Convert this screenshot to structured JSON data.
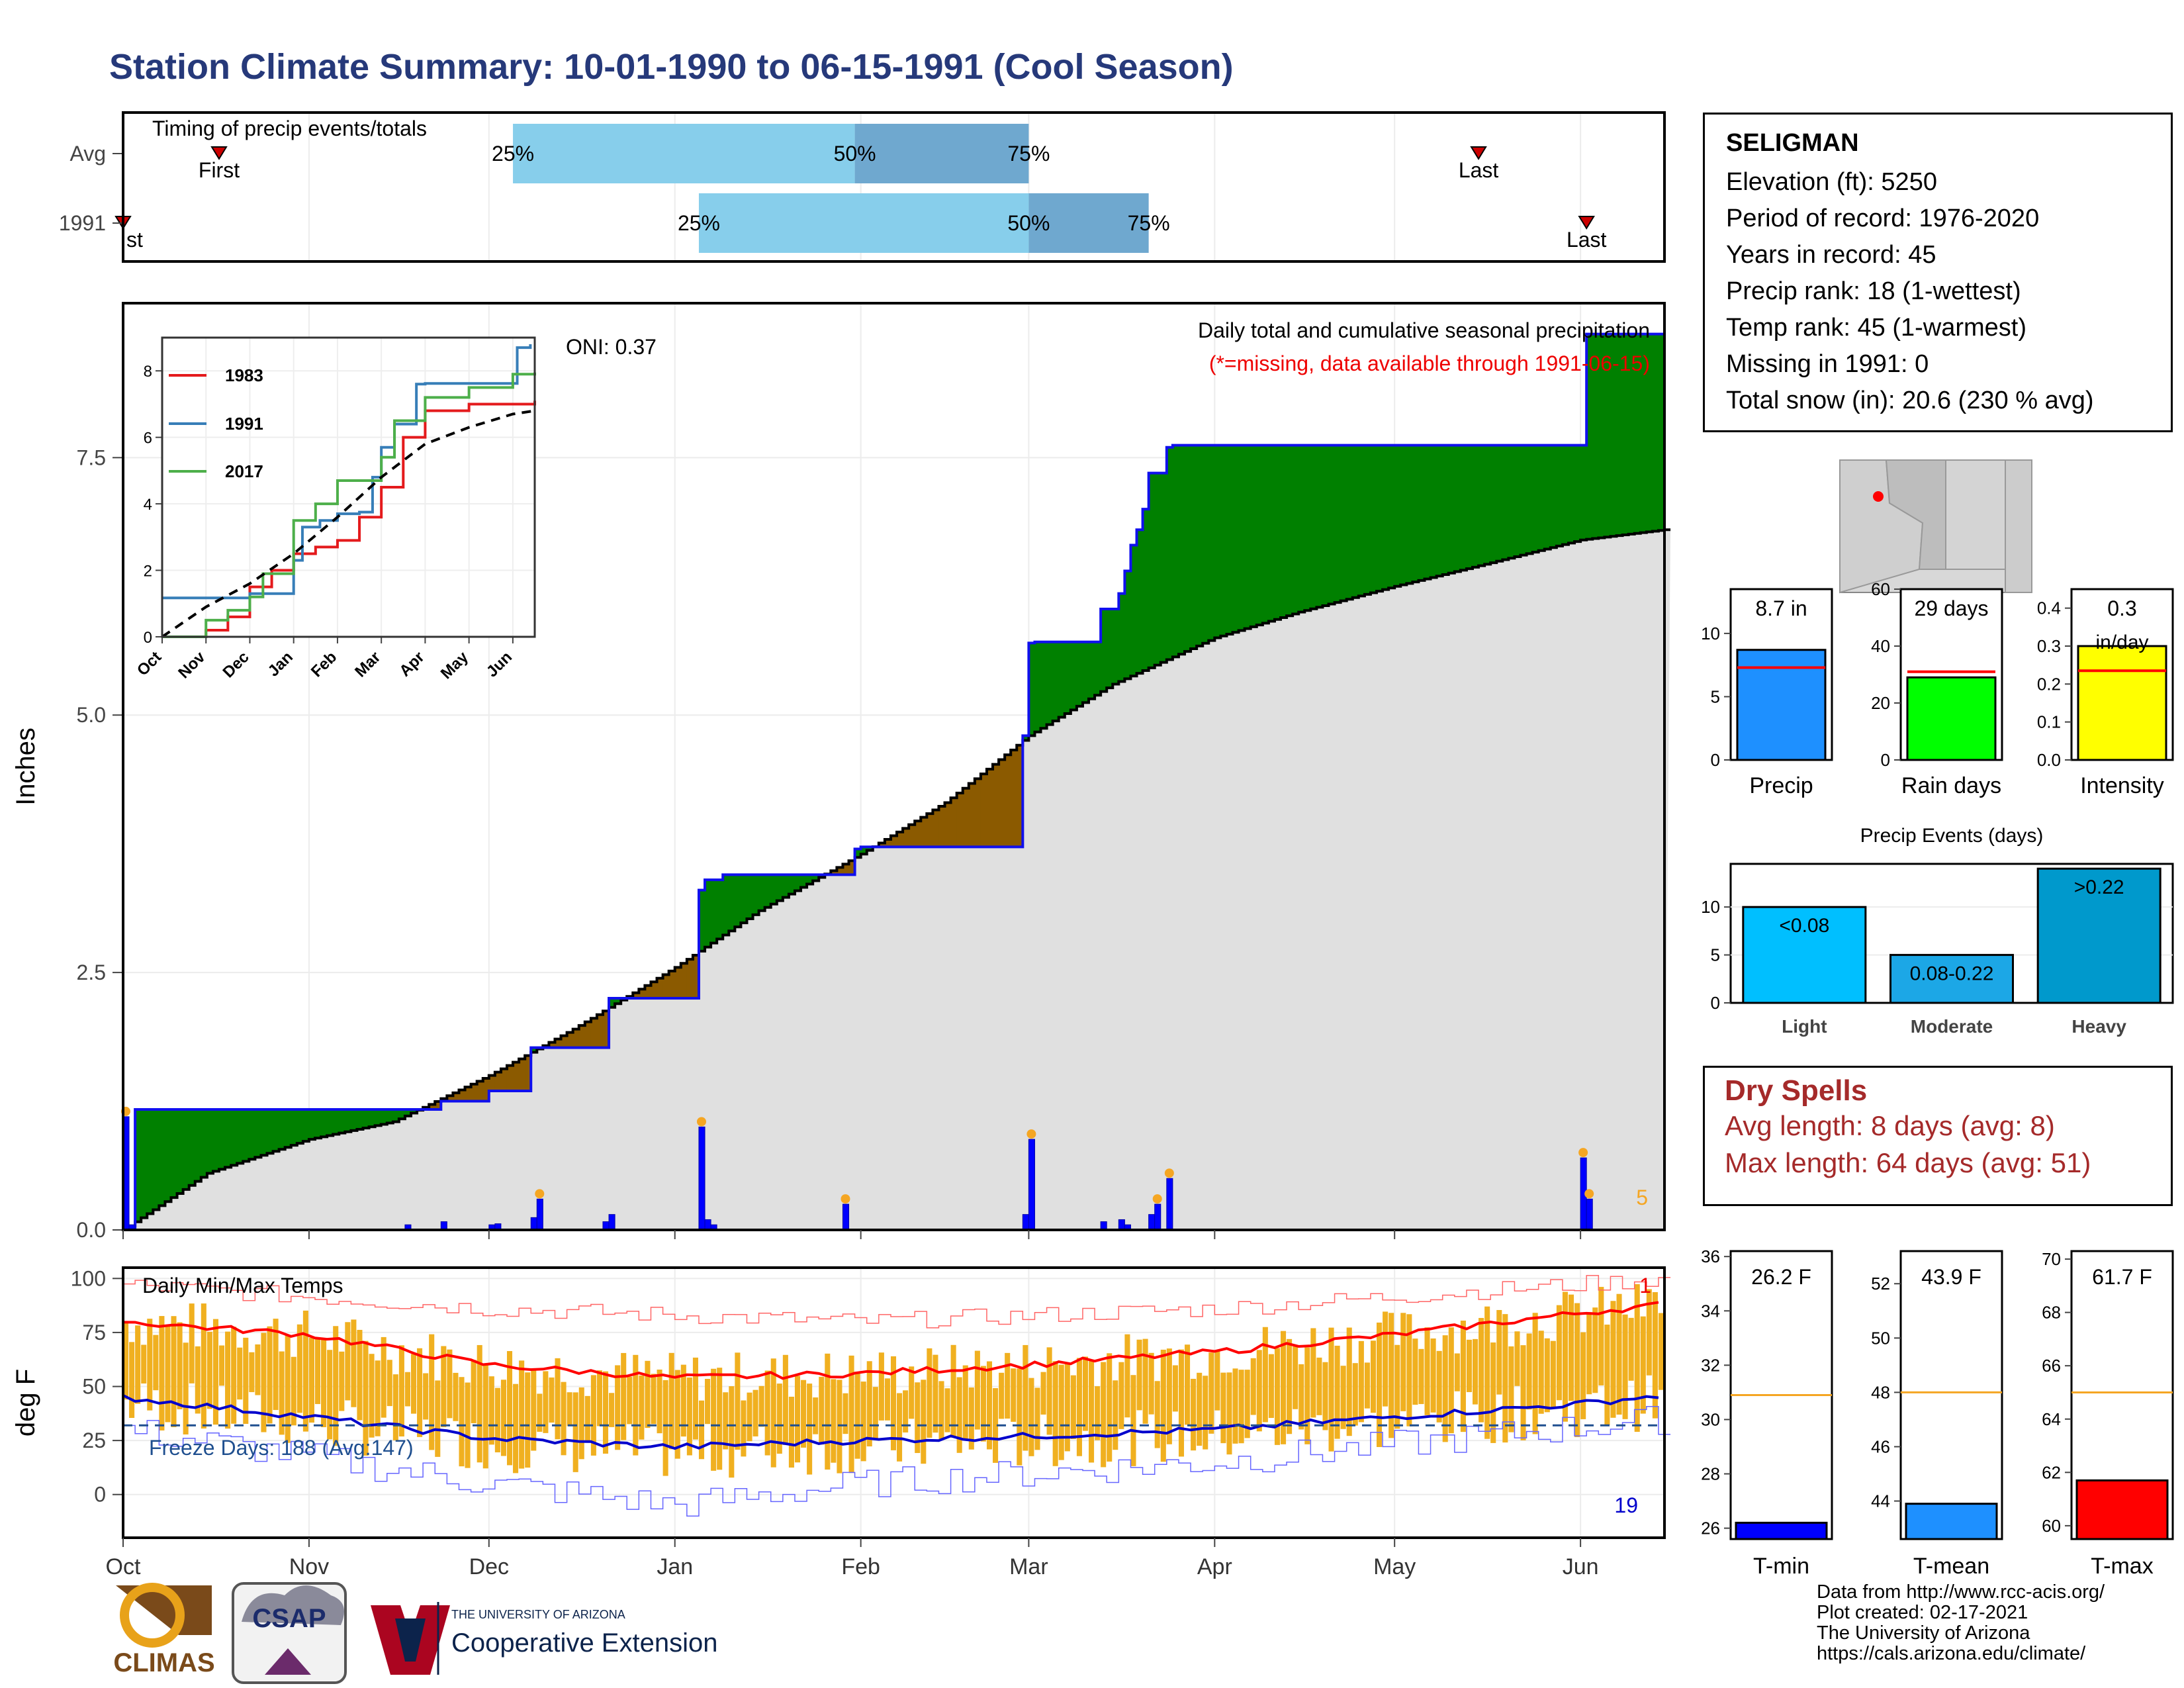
{
  "title": "Station Climate Summary: 10-01-1990 to 06-15-1991 (Cool Season)",
  "colors": {
    "title": "#26397a",
    "light_blue": "#87ceeb",
    "mid_blue": "#6fa8cf",
    "surplus": "#008000",
    "deficit": "#8b5a00",
    "cum_fill": "#e0e0e0",
    "daily_bar": "#0000ff",
    "temp_bar": "#f0b020",
    "normal_max": "#ff0000",
    "normal_min": "#0000cc",
    "precip_bar": "#1e90ff",
    "raindays_bar": "#00ff00",
    "intensity_bar": "#ffff00",
    "tmin_bar": "#0000ff",
    "tmean_bar": "#1e90ff",
    "tmax_bar": "#ff0000",
    "light_evt": "#00bfff",
    "moderate_evt": "#1ca7e6",
    "heavy_evt": "#0099cc",
    "avg_line": "#f5a623",
    "dry_text": "#a52a2a"
  },
  "timing": {
    "label": "Timing of precip events/totals",
    "rows": [
      {
        "name": "Avg",
        "first_date": "1990-10-17",
        "p25": "1990-12-05",
        "p50": "1991-01-31",
        "p75": "1991-03-01",
        "last_date": "1991-05-15",
        "labels": {
          "first": "First",
          "p25": "25%",
          "p50": "50%",
          "p75": "75%",
          "last": "Last"
        }
      },
      {
        "name": "1991",
        "first_date": "1990-10-01",
        "p25": "1991-01-05",
        "p50": "1991-03-01",
        "p75": "1991-03-21",
        "last_date": "1991-06-02",
        "labels": {
          "first": "First",
          "first_visible": "st",
          "p25": "25%",
          "p50": "50%",
          "p75": "75%",
          "last": "Last"
        }
      }
    ]
  },
  "precip_panel": {
    "ylabel": "Inches",
    "yticks": [
      "0.0",
      "2.5",
      "5.0",
      "7.5"
    ],
    "title": "Daily total and cumulative seasonal precipitation",
    "subtitle": "(*=missing, data available through 1991-06-15)",
    "oni": "ONI: 0.37",
    "corner_count": "5"
  },
  "inset": {
    "xticks": [
      "Oct",
      "Nov",
      "Dec",
      "Jan",
      "Feb",
      "Mar",
      "Apr",
      "May",
      "Jun"
    ],
    "yticks": [
      "0",
      "2",
      "4",
      "6",
      "8"
    ],
    "legend": [
      "1983",
      "1991",
      "2017"
    ]
  },
  "temp_panel": {
    "ylabel": "deg F",
    "yticks": [
      "0",
      "25",
      "50",
      "75",
      "100"
    ],
    "title": "Daily Min/Max Temps",
    "freeze_label": "Freeze Days: 188 (Avg:147)",
    "top_count": "1",
    "bottom_count": "19"
  },
  "months": [
    "Oct",
    "Nov",
    "Dec",
    "Jan",
    "Feb",
    "Mar",
    "Apr",
    "May",
    "Jun"
  ],
  "station": {
    "name": "SELIGMAN",
    "lines": [
      "Elevation (ft): 5250",
      "Period of record: 1976-2020",
      "Years in record: 45",
      "Precip rank: 18 (1-wettest)",
      "Temp rank: 45 (1-warmest)",
      "Missing in 1991: 0",
      "Total snow (in): 20.6 (230 % avg)"
    ]
  },
  "dry_spells": {
    "title": "Dry Spells",
    "avg": "Avg length: 8 days (avg: 8)",
    "max": "Max length: 64 days (avg: 51)"
  },
  "credits": [
    "Data from http://www.rcc-acis.org/",
    "Plot created: 02-17-2021",
    "The University of Arizona",
    "https://cals.arizona.edu/climate/"
  ],
  "logos": {
    "climas": "CLIMAS",
    "csap": "CSAP",
    "ua_line1": "THE UNIVERSITY OF ARIZONA",
    "ua_line2": "Cooperative Extension"
  },
  "chart_data": [
    {
      "type": "area",
      "id": "cumulative_precip",
      "ylim": [
        0,
        9.0
      ],
      "xlim": [
        "1990-10-01",
        "1991-06-15"
      ],
      "observed_cumulative": {
        "x": [
          "1990-10-01",
          "1990-10-03",
          "1990-11-17",
          "1990-11-23",
          "1990-12-01",
          "1990-12-08",
          "1990-12-21",
          "1991-01-05",
          "1991-01-06",
          "1991-01-09",
          "1991-01-31",
          "1991-02-01",
          "1991-02-28",
          "1991-03-01",
          "1991-03-02",
          "1991-03-13",
          "1991-03-16",
          "1991-03-17",
          "1991-03-18",
          "1991-03-19",
          "1991-03-20",
          "1991-03-21",
          "1991-03-24",
          "1991-03-25",
          "1991-06-01",
          "1991-06-02",
          "1991-06-15"
        ],
        "y": [
          0.0,
          1.17,
          1.17,
          1.25,
          1.35,
          1.77,
          2.25,
          3.3,
          3.4,
          3.45,
          3.7,
          3.72,
          4.8,
          5.7,
          5.71,
          6.03,
          6.18,
          6.4,
          6.65,
          6.8,
          7.0,
          7.35,
          7.6,
          7.62,
          7.62,
          8.7,
          8.7
        ]
      },
      "normal_cumulative": {
        "x": [
          "1990-10-01",
          "1990-10-15",
          "1990-11-01",
          "1990-11-15",
          "1990-12-01",
          "1990-12-15",
          "1991-01-01",
          "1991-01-15",
          "1991-02-01",
          "1991-02-15",
          "1991-03-01",
          "1991-03-15",
          "1991-04-01",
          "1991-04-15",
          "1991-05-01",
          "1991-05-15",
          "1991-06-01",
          "1991-06-15"
        ],
        "y": [
          0.0,
          0.55,
          0.88,
          1.05,
          1.5,
          1.95,
          2.55,
          3.1,
          3.65,
          4.15,
          4.8,
          5.3,
          5.75,
          6.0,
          6.25,
          6.45,
          6.7,
          6.8
        ]
      },
      "daily_precip": {
        "x": [
          "1990-10-01",
          "1990-10-02",
          "1990-11-17",
          "1990-11-23",
          "1990-12-01",
          "1990-12-02",
          "1990-12-08",
          "1990-12-09",
          "1990-12-20",
          "1990-12-21",
          "1991-01-05",
          "1991-01-06",
          "1991-01-07",
          "1991-01-29",
          "1991-02-28",
          "1991-03-01",
          "1991-03-13",
          "1991-03-16",
          "1991-03-17",
          "1991-03-21",
          "1991-03-22",
          "1991-03-24",
          "1991-06-01",
          "1991-06-02"
        ],
        "y": [
          1.1,
          0.05,
          0.05,
          0.08,
          0.05,
          0.06,
          0.12,
          0.3,
          0.08,
          0.15,
          1.0,
          0.1,
          0.05,
          0.25,
          0.15,
          0.88,
          0.08,
          0.1,
          0.05,
          0.15,
          0.25,
          0.5,
          0.7,
          0.3
        ]
      },
      "series_labels": [
        "1983",
        "1991",
        "2017"
      ]
    },
    {
      "type": "line",
      "id": "inset_cumulative",
      "xlim": [
        "Oct",
        "Jun"
      ],
      "ylim": [
        0,
        9.0
      ],
      "series": [
        {
          "name": "1983",
          "x": [
            0,
            1,
            1.5,
            2,
            2.5,
            3,
            3.5,
            4,
            4.5,
            5,
            5.5,
            6,
            7,
            8.5
          ],
          "y": [
            0,
            0.2,
            0.6,
            1.5,
            2.0,
            2.5,
            2.7,
            2.9,
            3.6,
            4.5,
            6.0,
            6.8,
            7.0,
            7.1
          ]
        },
        {
          "name": "1991",
          "x": [
            0,
            1,
            2,
            3,
            3.2,
            3.6,
            4,
            4.5,
            4.8,
            5,
            5.3,
            5.8,
            6,
            7,
            8,
            8.1,
            8.4
          ],
          "y": [
            1.17,
            1.17,
            1.3,
            2.3,
            3.3,
            3.5,
            3.7,
            3.75,
            4.8,
            5.7,
            6.4,
            7.6,
            7.62,
            7.62,
            7.62,
            8.7,
            8.8
          ]
        },
        {
          "name": "2017",
          "x": [
            0,
            1,
            1.5,
            2,
            2.3,
            3,
            3.5,
            4,
            4.3,
            5,
            5.3,
            6,
            7,
            8,
            8.5
          ],
          "y": [
            0,
            0.5,
            0.8,
            1.2,
            1.9,
            3.5,
            4.0,
            4.7,
            4.7,
            5.4,
            6.5,
            7.2,
            7.5,
            7.9,
            7.95
          ]
        },
        {
          "name": "normal",
          "x": [
            0,
            1,
            2,
            3,
            4,
            5,
            6,
            7,
            8,
            8.5
          ],
          "y": [
            0,
            0.9,
            1.6,
            2.5,
            3.6,
            4.8,
            5.8,
            6.3,
            6.7,
            6.8
          ]
        }
      ]
    },
    {
      "type": "bar",
      "id": "daily_temps",
      "ylim": [
        -20,
        105
      ],
      "xlim": [
        "1990-10-01",
        "1991-06-15"
      ],
      "observed_max_range": [
        60,
        95
      ],
      "observed_min_range": [
        -15,
        45
      ],
      "normal_max": {
        "x": [
          "1990-10-01",
          "1990-11-01",
          "1990-12-01",
          "1991-01-01",
          "1991-02-01",
          "1991-03-01",
          "1991-04-01",
          "1991-05-01",
          "1991-06-01",
          "1991-06-15"
        ],
        "y": [
          80,
          74,
          60,
          54,
          56,
          60,
          66,
          74,
          84,
          88
        ]
      },
      "normal_min": {
        "x": [
          "1990-10-01",
          "1990-11-01",
          "1990-12-01",
          "1991-01-01",
          "1991-02-01",
          "1991-03-01",
          "1991-04-01",
          "1991-05-01",
          "1991-06-01",
          "1991-06-15"
        ],
        "y": [
          45,
          36,
          26,
          22,
          25,
          27,
          30,
          36,
          42,
          46
        ]
      },
      "record_high": {
        "x": [
          "1990-10-01",
          "1990-12-01",
          "1991-02-01",
          "1991-04-01",
          "1991-06-15"
        ],
        "y": [
          97,
          86,
          80,
          86,
          100
        ]
      },
      "record_low": {
        "x": [
          "1990-10-01",
          "1990-12-01",
          "1991-01-01",
          "1991-02-01",
          "1991-04-01",
          "1991-06-15"
        ],
        "y": [
          30,
          5,
          -5,
          5,
          15,
          35
        ]
      },
      "freeze_threshold": 32
    },
    {
      "type": "bar",
      "id": "precip_summary",
      "categories": [
        "Precip",
        "Rain days",
        "Intensity"
      ],
      "panels": [
        {
          "category": "Precip",
          "value": 8.7,
          "label": "8.7 in",
          "avg": 7.3,
          "ylim": [
            0,
            13.5
          ],
          "yticks": [
            "0",
            "5",
            "10"
          ]
        },
        {
          "category": "Rain days",
          "value": 29,
          "label": "29 days",
          "avg": 31,
          "ylim": [
            0,
            60
          ],
          "yticks": [
            "0",
            "20",
            "40",
            "60"
          ]
        },
        {
          "category": "Intensity",
          "value": 0.3,
          "label": "0.3",
          "label2": "in/day",
          "avg": 0.235,
          "ylim": [
            0,
            0.45
          ],
          "yticks": [
            "0.0",
            "0.1",
            "0.2",
            "0.3",
            "0.4"
          ]
        }
      ]
    },
    {
      "type": "bar",
      "id": "precip_events",
      "title": "Precip Events (days)",
      "categories": [
        "Light",
        "Moderate",
        "Heavy"
      ],
      "values": [
        10,
        5,
        14
      ],
      "labels": [
        "<0.08",
        "0.08-0.22",
        ">0.22"
      ],
      "ylim": [
        0,
        14.5
      ],
      "yticks": [
        "0",
        "5",
        "10"
      ]
    },
    {
      "type": "bar",
      "id": "temp_summary",
      "categories": [
        "T-min",
        "T-mean",
        "T-max"
      ],
      "panels": [
        {
          "category": "T-min",
          "value": 26.2,
          "label": "26.2 F",
          "avg": 30.9,
          "ylim": [
            25.6,
            36.2
          ],
          "yticks": [
            "26",
            "28",
            "30",
            "32",
            "34",
            "36"
          ]
        },
        {
          "category": "T-mean",
          "value": 43.9,
          "label": "43.9 F",
          "avg": 48.0,
          "ylim": [
            42.6,
            53.2
          ],
          "yticks": [
            "44",
            "46",
            "48",
            "50",
            "52"
          ]
        },
        {
          "category": "T-max",
          "value": 61.7,
          "label": "61.7 F",
          "avg": 65.0,
          "ylim": [
            59.5,
            70.3
          ],
          "yticks": [
            "60",
            "62",
            "64",
            "66",
            "68",
            "70"
          ]
        }
      ]
    }
  ]
}
